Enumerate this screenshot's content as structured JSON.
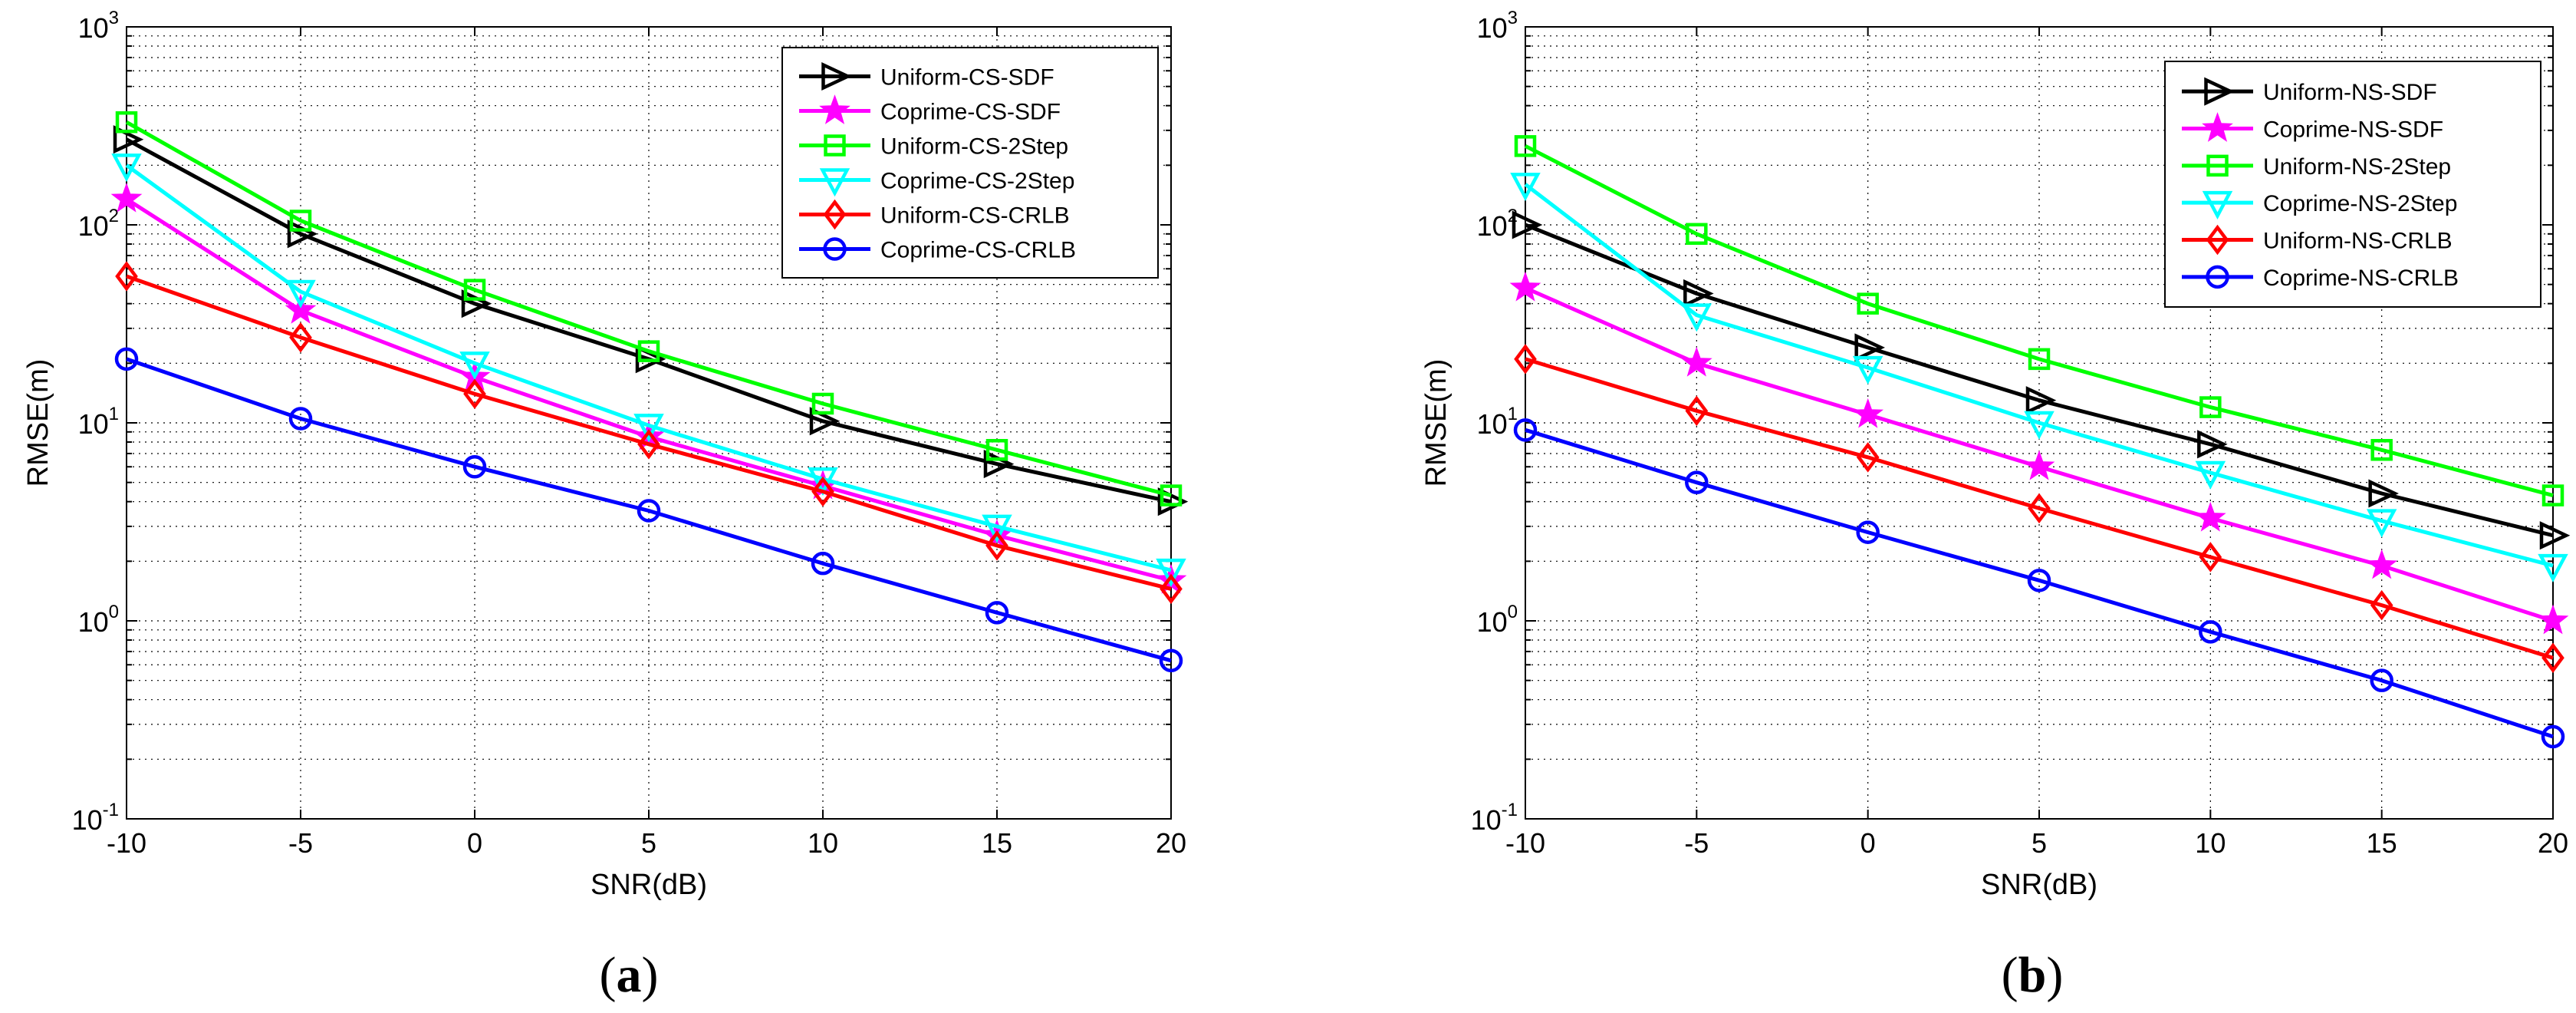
{
  "chart_data": [
    {
      "type": "line",
      "panel_label": "a",
      "xlabel": "SNR(dB)",
      "ylabel": "RMSE(m)",
      "yscale": "log",
      "xlim": [
        -10,
        20
      ],
      "ylim": [
        0.1,
        1000
      ],
      "x": [
        -10,
        -5,
        0,
        5,
        10,
        15,
        20
      ],
      "xticks": [
        "-10",
        "-5",
        "0",
        "5",
        "10",
        "15",
        "20"
      ],
      "yticks": [
        {
          "base": "10",
          "exp": "-1"
        },
        {
          "base": "10",
          "exp": "0"
        },
        {
          "base": "10",
          "exp": "1"
        },
        {
          "base": "10",
          "exp": "2"
        },
        {
          "base": "10",
          "exp": "3"
        }
      ],
      "grid": true,
      "legend_position": "top-right",
      "series": [
        {
          "name": "Uniform-CS-SDF",
          "color": "#000000",
          "marker": "triangle-right",
          "values": [
            270,
            90,
            40,
            21,
            10.2,
            6.2,
            4.0
          ]
        },
        {
          "name": "Coprime-CS-SDF",
          "color": "#ff00ff",
          "marker": "star",
          "values": [
            135,
            37,
            17,
            8.5,
            4.8,
            2.7,
            1.6
          ]
        },
        {
          "name": "Uniform-CS-2Step",
          "color": "#00ff00",
          "marker": "square",
          "values": [
            330,
            105,
            47,
            23,
            12.5,
            7.3,
            4.3
          ]
        },
        {
          "name": "Coprime-CS-2Step",
          "color": "#00ffff",
          "marker": "triangle-down",
          "values": [
            200,
            46,
            20,
            9.7,
            5.2,
            3.0,
            1.8
          ]
        },
        {
          "name": "Uniform-CS-CRLB",
          "color": "#ff0000",
          "marker": "diamond",
          "values": [
            55,
            27,
            14,
            7.8,
            4.5,
            2.4,
            1.45
          ]
        },
        {
          "name": "Coprime-CS-CRLB",
          "color": "#0000ff",
          "marker": "circle",
          "values": [
            21,
            10.5,
            6.0,
            3.6,
            1.95,
            1.1,
            0.63
          ]
        }
      ]
    },
    {
      "type": "line",
      "panel_label": "b",
      "xlabel": "SNR(dB)",
      "ylabel": "RMSE(m)",
      "yscale": "log",
      "xlim": [
        -10,
        20
      ],
      "ylim": [
        0.1,
        1000
      ],
      "x": [
        -10,
        -5,
        0,
        5,
        10,
        15,
        20
      ],
      "xticks": [
        "-10",
        "-5",
        "0",
        "5",
        "10",
        "15",
        "20"
      ],
      "yticks": [
        {
          "base": "10",
          "exp": "-1"
        },
        {
          "base": "10",
          "exp": "0"
        },
        {
          "base": "10",
          "exp": "1"
        },
        {
          "base": "10",
          "exp": "2"
        },
        {
          "base": "10",
          "exp": "3"
        }
      ],
      "grid": true,
      "legend_position": "top-right",
      "series": [
        {
          "name": "Uniform-NS-SDF",
          "color": "#000000",
          "marker": "triangle-right",
          "values": [
            100,
            45,
            24,
            13,
            7.8,
            4.4,
            2.7
          ]
        },
        {
          "name": "Coprime-NS-SDF",
          "color": "#ff00ff",
          "marker": "star",
          "values": [
            48,
            20,
            11,
            6.0,
            3.3,
            1.9,
            1.0
          ]
        },
        {
          "name": "Uniform-NS-2Step",
          "color": "#00ff00",
          "marker": "square",
          "values": [
            250,
            90,
            40,
            21,
            12,
            7.3,
            4.3
          ]
        },
        {
          "name": "Coprime-NS-2Step",
          "color": "#00ffff",
          "marker": "triangle-down",
          "values": [
            160,
            35,
            19,
            10,
            5.6,
            3.2,
            1.9
          ]
        },
        {
          "name": "Uniform-NS-CRLB",
          "color": "#ff0000",
          "marker": "diamond",
          "values": [
            21,
            11.5,
            6.7,
            3.7,
            2.1,
            1.2,
            0.65
          ]
        },
        {
          "name": "Coprime-NS-CRLB",
          "color": "#0000ff",
          "marker": "circle",
          "values": [
            9.2,
            5.0,
            2.8,
            1.6,
            0.88,
            0.5,
            0.26
          ]
        }
      ]
    }
  ]
}
